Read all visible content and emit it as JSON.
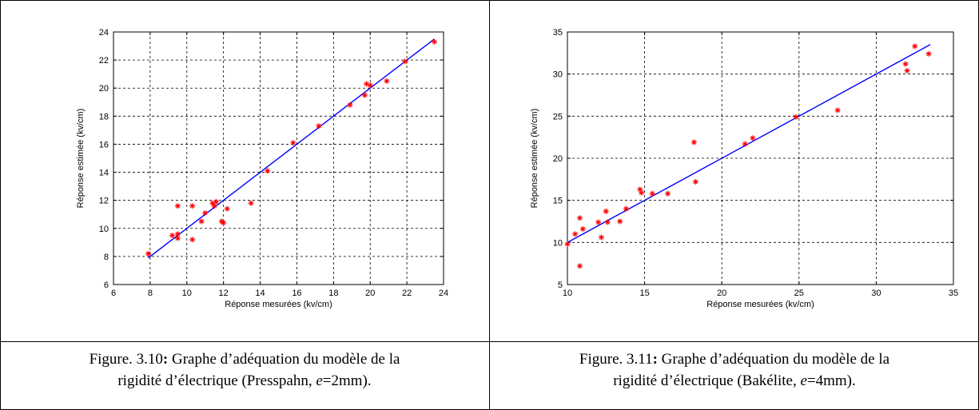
{
  "captions": [
    {
      "fig": "Figure. 3.10",
      "colon": ":",
      "text1": " Graphe d’adéquation du  modèle de la",
      "text2a": "rigidité d’électrique (Presspahn, ",
      "e": "e",
      "text2b": "=2mm)."
    },
    {
      "fig": "Figure. 3.11",
      "colon": ":",
      "text1": " Graphe d’adéquation du  modèle de la",
      "text2a": "rigidité d’électrique  (Bakélite, ",
      "e": "e",
      "text2b": "=4mm)."
    }
  ],
  "chart_data": [
    {
      "type": "scatter",
      "title": "",
      "xlabel": "Réponse mesurées (kv/cm)",
      "ylabel": "Réponse estimée (kv/cm)",
      "xlim": [
        6,
        24
      ],
      "ylim": [
        6,
        24
      ],
      "xticks": [
        6,
        8,
        10,
        12,
        14,
        16,
        18,
        20,
        22,
        24
      ],
      "yticks": [
        6,
        8,
        10,
        12,
        14,
        16,
        18,
        20,
        22,
        24
      ],
      "grid": true,
      "marker_color": "#ff0000",
      "line_color": "#0000ff",
      "fit_line": {
        "x": [
          7.9,
          23.5
        ],
        "y": [
          7.9,
          23.5
        ]
      },
      "points": [
        [
          7.9,
          8.2
        ],
        [
          9.2,
          9.5
        ],
        [
          9.5,
          9.3
        ],
        [
          9.5,
          9.6
        ],
        [
          9.5,
          11.6
        ],
        [
          10.3,
          11.6
        ],
        [
          10.3,
          9.2
        ],
        [
          10.8,
          10.5
        ],
        [
          11.0,
          11.1
        ],
        [
          11.4,
          11.8
        ],
        [
          11.5,
          11.6
        ],
        [
          11.6,
          11.9
        ],
        [
          11.9,
          10.5
        ],
        [
          12.0,
          10.4
        ],
        [
          12.2,
          11.4
        ],
        [
          13.5,
          11.8
        ],
        [
          14.4,
          14.1
        ],
        [
          15.8,
          16.1
        ],
        [
          17.2,
          17.3
        ],
        [
          18.9,
          18.8
        ],
        [
          19.7,
          19.5
        ],
        [
          19.8,
          20.3
        ],
        [
          20.0,
          20.2
        ],
        [
          20.9,
          20.5
        ],
        [
          21.9,
          21.9
        ],
        [
          23.5,
          23.3
        ]
      ]
    },
    {
      "type": "scatter",
      "title": "",
      "xlabel": "Réponse mesurées (kv/cm)",
      "ylabel": "Réponse estimée (kv/cm)",
      "xlim": [
        10,
        35
      ],
      "ylim": [
        5,
        35
      ],
      "xticks": [
        10,
        15,
        20,
        25,
        30,
        35
      ],
      "yticks": [
        5,
        10,
        15,
        20,
        25,
        30,
        35
      ],
      "grid": true,
      "marker_color": "#ff0000",
      "line_color": "#0000ff",
      "fit_line": {
        "x": [
          10,
          33.5
        ],
        "y": [
          10,
          33.5
        ]
      },
      "points": [
        [
          10.0,
          9.8
        ],
        [
          10.5,
          11.0
        ],
        [
          10.8,
          12.9
        ],
        [
          10.8,
          7.2
        ],
        [
          11.0,
          11.6
        ],
        [
          12.0,
          12.4
        ],
        [
          12.2,
          10.6
        ],
        [
          12.5,
          13.7
        ],
        [
          12.6,
          12.4
        ],
        [
          13.4,
          12.5
        ],
        [
          13.8,
          14.0
        ],
        [
          14.7,
          16.3
        ],
        [
          14.8,
          15.9
        ],
        [
          15.5,
          15.8
        ],
        [
          16.5,
          15.8
        ],
        [
          18.2,
          21.9
        ],
        [
          18.3,
          17.2
        ],
        [
          21.5,
          21.7
        ],
        [
          22.0,
          22.4
        ],
        [
          24.8,
          24.9
        ],
        [
          27.5,
          25.7
        ],
        [
          31.9,
          31.2
        ],
        [
          32.0,
          30.4
        ],
        [
          32.5,
          33.3
        ],
        [
          33.4,
          32.4
        ]
      ]
    }
  ]
}
